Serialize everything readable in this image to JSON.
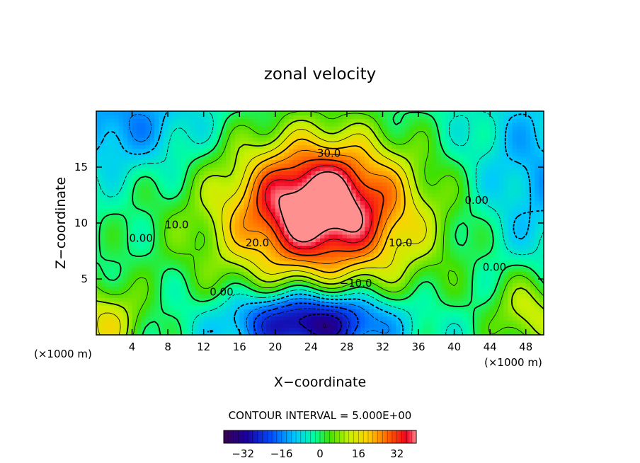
{
  "chart_data": {
    "type": "heatmap",
    "title": "zonal velocity",
    "xlabel": "X−coordinate",
    "ylabel": "Z−coordinate",
    "x_unit_left": "(×1000 m)",
    "x_unit_right": "(×1000 m)",
    "xlim": [
      0,
      50
    ],
    "ylim": [
      0,
      20
    ],
    "x_ticks": [
      4,
      8,
      12,
      16,
      20,
      24,
      28,
      32,
      36,
      40,
      44,
      48
    ],
    "y_ticks": [
      5,
      10,
      15
    ],
    "contour_interval_text": "CONTOUR INTERVAL = 5.000E+00",
    "colorbar": {
      "range": [
        -40,
        40
      ],
      "ticks": [
        -32,
        -16,
        0,
        16,
        32
      ],
      "tick_labels": [
        "−32",
        "−16",
        "0",
        "16",
        "32"
      ]
    },
    "contour_labels": [
      {
        "text": "30.0",
        "x": 26,
        "z": 16.2
      },
      {
        "text": "20.0",
        "x": 18,
        "z": 8.2
      },
      {
        "text": "10.0",
        "x": 9,
        "z": 9.8
      },
      {
        "text": "10.0",
        "x": 34,
        "z": 8.2
      },
      {
        "text": "0.00",
        "x": 5,
        "z": 8.6
      },
      {
        "text": "0.00",
        "x": 42.5,
        "z": 12
      },
      {
        "text": "0.00",
        "x": 44.5,
        "z": 6
      },
      {
        "text": "0.00",
        "x": 14,
        "z": 3.8
      },
      {
        "text": "−10.0",
        "x": 29,
        "z": 4.6
      }
    ],
    "grid": false,
    "field_description_points": [
      {
        "x": 25,
        "z": 11.5,
        "value": 38
      },
      {
        "x": 24,
        "z": 1.5,
        "value": -32
      },
      {
        "x": 3,
        "z": 18,
        "value": -12
      },
      {
        "x": 49,
        "z": 15,
        "value": -8
      },
      {
        "x": 48,
        "z": 2,
        "value": 14
      },
      {
        "x": 2,
        "z": 1,
        "value": 18
      }
    ]
  }
}
